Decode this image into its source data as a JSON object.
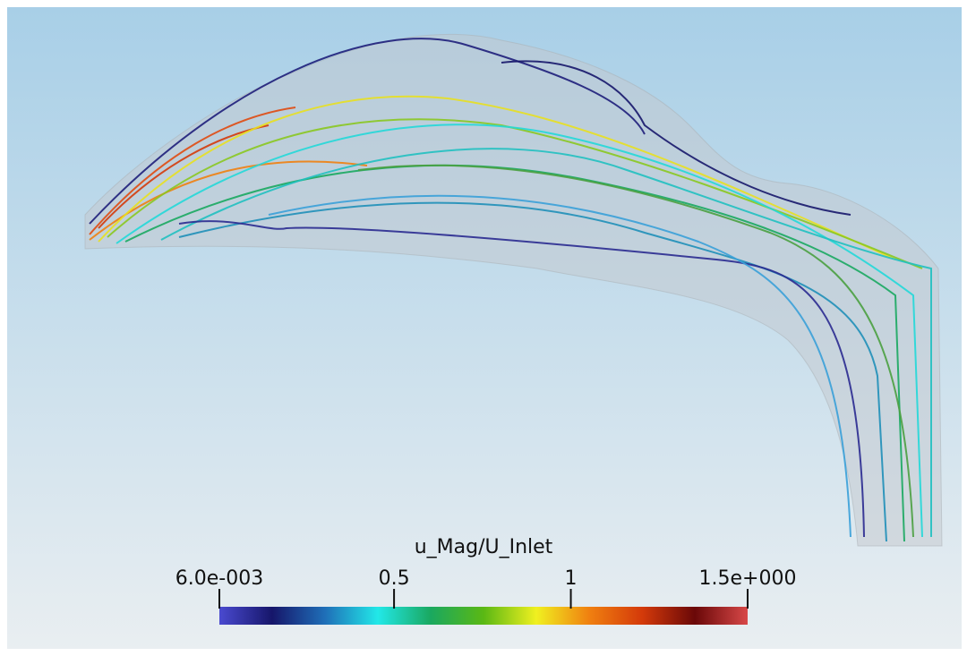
{
  "colorbar": {
    "title": "u_Mag/U_Inlet",
    "range": [
      0.006,
      1.5
    ],
    "ticks": [
      {
        "value": 0.006,
        "label": "6.0e-003"
      },
      0.5,
      1,
      {
        "value": 1.5,
        "label": "1.5e+000"
      }
    ],
    "colors": [
      "#4a4ad0",
      "#16166a",
      "#1f6fb8",
      "#22e8e8",
      "#1aa860",
      "#5ab814",
      "#f0f020",
      "#f08010",
      "#d43a0a",
      "#6a0808",
      "#d84848"
    ]
  }
}
